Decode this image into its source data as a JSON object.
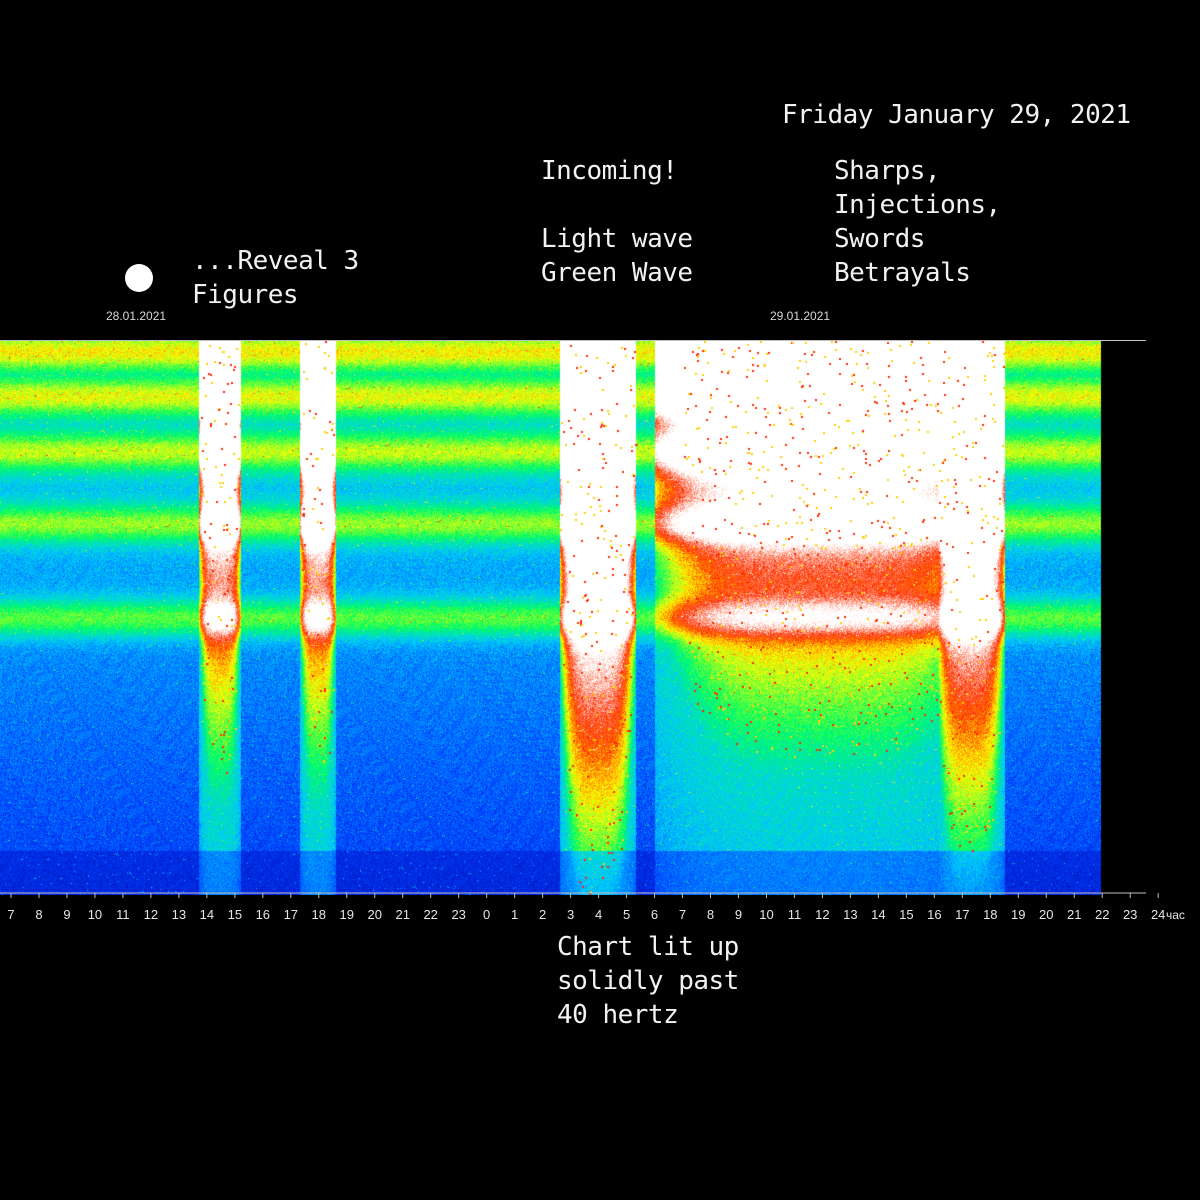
{
  "chart_data": {
    "type": "heatmap",
    "title": "Friday January 29, 2021",
    "date_labels": [
      "28.01.2021",
      "29.01.2021"
    ],
    "x_unit": "час",
    "x_ticks": [
      "7",
      "8",
      "9",
      "10",
      "11",
      "12",
      "13",
      "14",
      "15",
      "16",
      "17",
      "18",
      "19",
      "20",
      "21",
      "22",
      "23",
      "0",
      "1",
      "2",
      "3",
      "4",
      "5",
      "6",
      "7",
      "8",
      "9",
      "10",
      "11",
      "12",
      "13",
      "14",
      "15",
      "16",
      "17",
      "18",
      "19",
      "20",
      "21",
      "22",
      "23",
      "24"
    ],
    "x_range_hours": [
      6.6,
      48
    ],
    "data_end_hour": 45.9,
    "colormap": [
      "#0000a0",
      "#0040ff",
      "#00c8ff",
      "#00ff60",
      "#ffff00",
      "#ff3000",
      "#ffffff"
    ],
    "intensity_events": [
      {
        "start_hour": 13.7,
        "end_hour": 15.2,
        "peak": 0.8
      },
      {
        "start_hour": 17.3,
        "end_hour": 18.6,
        "peak": 0.8
      },
      {
        "start_hour": 26.6,
        "end_hour": 29.3,
        "peak": 1.0
      },
      {
        "start_hour": 30.0,
        "end_hour": 42.0,
        "peak": 0.75
      },
      {
        "start_hour": 40.0,
        "end_hour": 42.5,
        "peak": 0.95
      }
    ]
  },
  "annotations": {
    "date_heading": "Friday January 29, 2021",
    "incoming": "Incoming!",
    "light_wave": "Light wave",
    "green_wave": "Green Wave",
    "sharps": "Sharps,",
    "injections": "Injections,",
    "swords": "Swords",
    "betrayals": "Betrayals",
    "reveal": "...Reveal 3",
    "figures": "Figures",
    "chart_lit_1": "Chart lit up",
    "chart_lit_2": "solidly past",
    "chart_lit_3": "40 hertz"
  }
}
